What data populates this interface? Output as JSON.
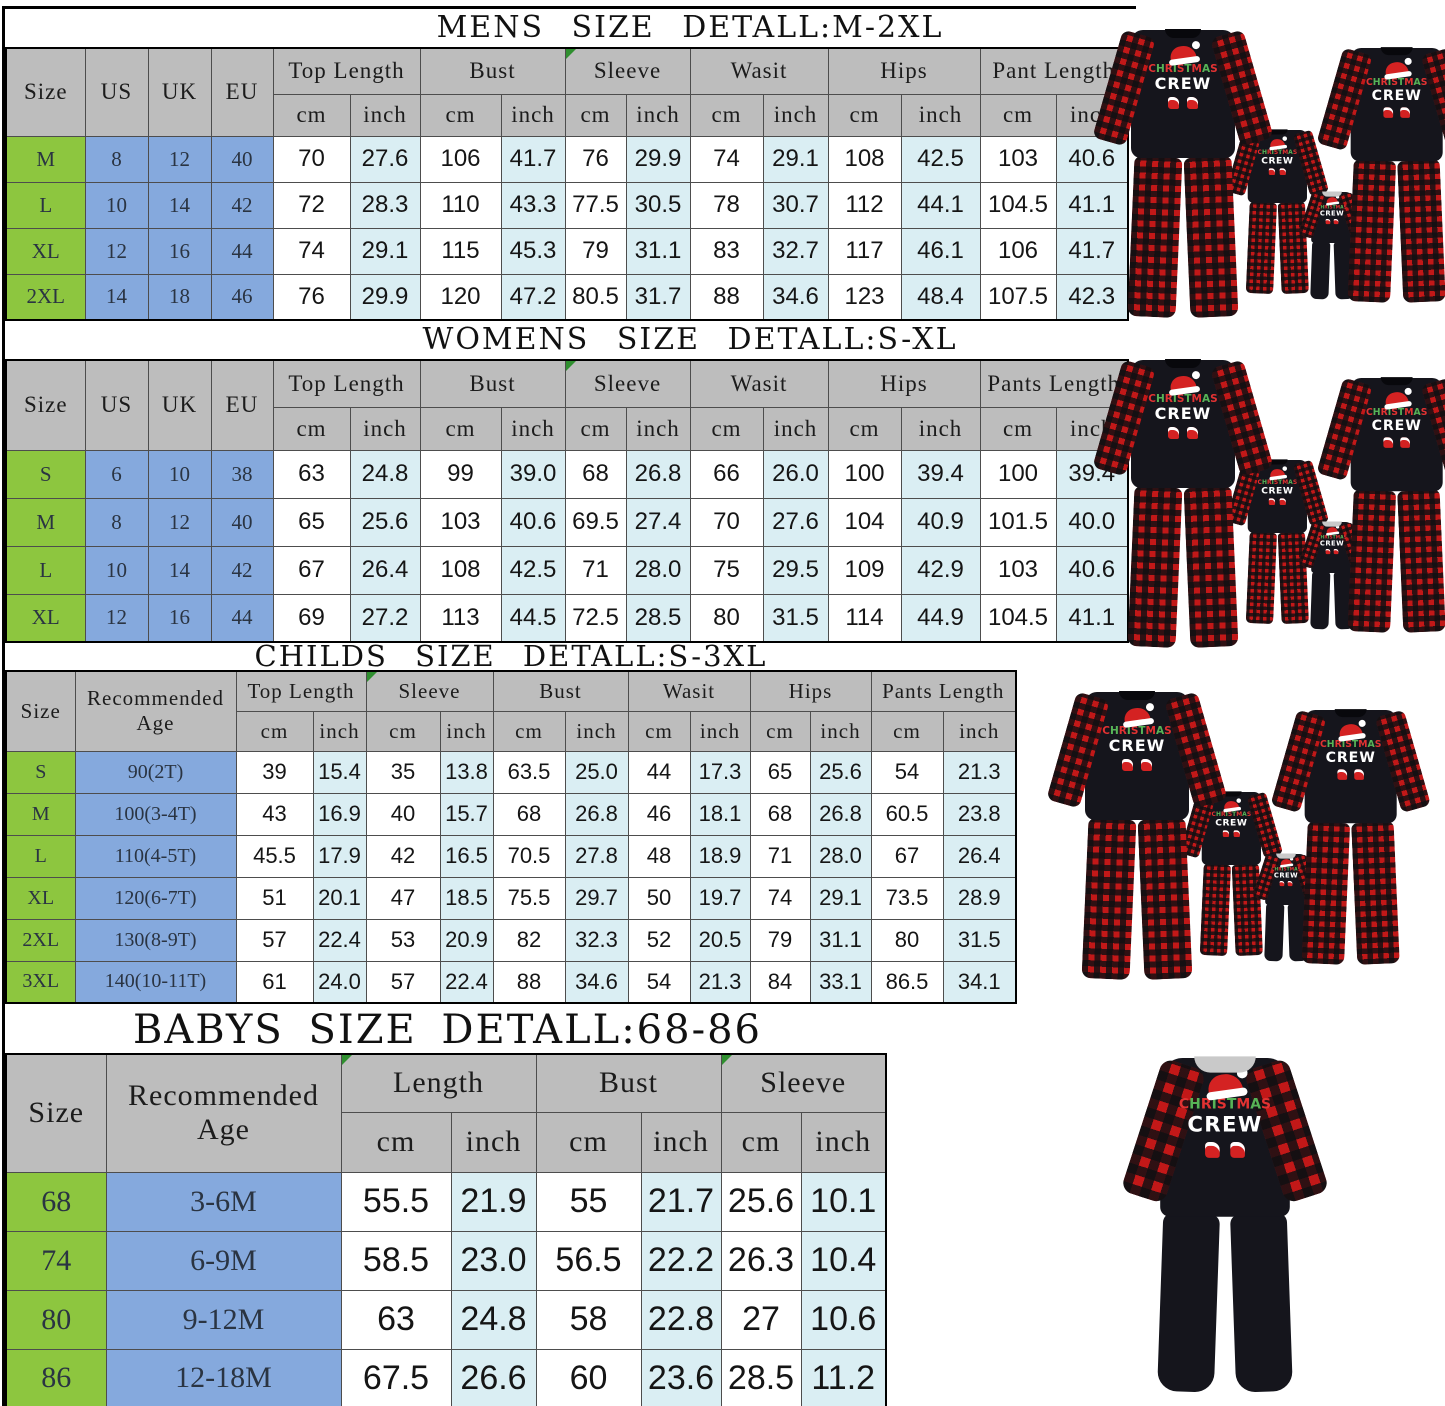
{
  "palette": {
    "header_gray": "#bdbdbd",
    "size_green": "#8dc63f",
    "label_blue": "#85a9dd",
    "inch_blue": "#daeef3",
    "plaid_red": "#c21818"
  },
  "tables": [
    {
      "title": "MENS SIZE DETALL:M-2XL",
      "label_headers": [
        "Size",
        "US",
        "UK",
        "EU"
      ],
      "groups": [
        {
          "label": "Top Length"
        },
        {
          "label": "Bust"
        },
        {
          "label": "Sleeve",
          "flag": true
        },
        {
          "label": "Wasit"
        },
        {
          "label": "Hips"
        },
        {
          "label": "Pant Length"
        }
      ],
      "units": [
        "cm",
        "inch"
      ],
      "rows": [
        {
          "labels": [
            "M",
            "8",
            "12",
            "40"
          ],
          "values": [
            "70",
            "27.6",
            "106",
            "41.7",
            "76",
            "29.9",
            "74",
            "29.1",
            "108",
            "42.5",
            "103",
            "40.6"
          ]
        },
        {
          "labels": [
            "L",
            "10",
            "14",
            "42"
          ],
          "values": [
            "72",
            "28.3",
            "110",
            "43.3",
            "77.5",
            "30.5",
            "78",
            "30.7",
            "112",
            "44.1",
            "104.5",
            "41.1"
          ]
        },
        {
          "labels": [
            "XL",
            "12",
            "16",
            "44"
          ],
          "values": [
            "74",
            "29.1",
            "115",
            "45.3",
            "79",
            "31.1",
            "83",
            "32.7",
            "117",
            "46.1",
            "106",
            "41.7"
          ]
        },
        {
          "labels": [
            "2XL",
            "14",
            "18",
            "46"
          ],
          "values": [
            "76",
            "29.9",
            "120",
            "47.2",
            "80.5",
            "31.7",
            "88",
            "34.6",
            "123",
            "48.4",
            "107.5",
            "42.3"
          ]
        }
      ]
    },
    {
      "title": "WOMENS SIZE DETALL:S-XL",
      "label_headers": [
        "Size",
        "US",
        "UK",
        "EU"
      ],
      "groups": [
        {
          "label": "Top Length"
        },
        {
          "label": "Bust"
        },
        {
          "label": "Sleeve",
          "flag": true
        },
        {
          "label": "Wasit"
        },
        {
          "label": "Hips"
        },
        {
          "label": "Pants Length"
        }
      ],
      "units": [
        "cm",
        "inch"
      ],
      "rows": [
        {
          "labels": [
            "S",
            "6",
            "10",
            "38"
          ],
          "values": [
            "63",
            "24.8",
            "99",
            "39.0",
            "68",
            "26.8",
            "66",
            "26.0",
            "100",
            "39.4",
            "100",
            "39.4"
          ]
        },
        {
          "labels": [
            "M",
            "8",
            "12",
            "40"
          ],
          "values": [
            "65",
            "25.6",
            "103",
            "40.6",
            "69.5",
            "27.4",
            "70",
            "27.6",
            "104",
            "40.9",
            "101.5",
            "40.0"
          ]
        },
        {
          "labels": [
            "L",
            "10",
            "14",
            "42"
          ],
          "values": [
            "67",
            "26.4",
            "108",
            "42.5",
            "71",
            "28.0",
            "75",
            "29.5",
            "109",
            "42.9",
            "103",
            "40.6"
          ]
        },
        {
          "labels": [
            "XL",
            "12",
            "16",
            "44"
          ],
          "values": [
            "69",
            "27.2",
            "113",
            "44.5",
            "72.5",
            "28.5",
            "80",
            "31.5",
            "114",
            "44.9",
            "104.5",
            "41.1"
          ]
        }
      ]
    },
    {
      "title": "CHILDS SIZE DETALL:S-3XL",
      "label_headers": [
        "Size",
        "Recommended Age"
      ],
      "groups": [
        {
          "label": "Top Length"
        },
        {
          "label": "Sleeve",
          "flag": true
        },
        {
          "label": "Bust"
        },
        {
          "label": "Wasit"
        },
        {
          "label": "Hips"
        },
        {
          "label": "Pants Length"
        }
      ],
      "units": [
        "cm",
        "inch"
      ],
      "rows": [
        {
          "labels": [
            "S",
            "90(2T)"
          ],
          "values": [
            "39",
            "15.4",
            "35",
            "13.8",
            "63.5",
            "25.0",
            "44",
            "17.3",
            "65",
            "25.6",
            "54",
            "21.3"
          ]
        },
        {
          "labels": [
            "M",
            "100(3-4T)"
          ],
          "values": [
            "43",
            "16.9",
            "40",
            "15.7",
            "68",
            "26.8",
            "46",
            "18.1",
            "68",
            "26.8",
            "60.5",
            "23.8"
          ]
        },
        {
          "labels": [
            "L",
            "110(4-5T)"
          ],
          "values": [
            "45.5",
            "17.9",
            "42",
            "16.5",
            "70.5",
            "27.8",
            "48",
            "18.9",
            "71",
            "28.0",
            "67",
            "26.4"
          ]
        },
        {
          "labels": [
            "XL",
            "120(6-7T)"
          ],
          "values": [
            "51",
            "20.1",
            "47",
            "18.5",
            "75.5",
            "29.7",
            "50",
            "19.7",
            "74",
            "29.1",
            "73.5",
            "28.9"
          ]
        },
        {
          "labels": [
            "2XL",
            "130(8-9T)"
          ],
          "values": [
            "57",
            "22.4",
            "53",
            "20.9",
            "82",
            "32.3",
            "52",
            "20.5",
            "79",
            "31.1",
            "80",
            "31.5"
          ]
        },
        {
          "labels": [
            "3XL",
            "140(10-11T)"
          ],
          "values": [
            "61",
            "24.0",
            "57",
            "22.4",
            "88",
            "34.6",
            "54",
            "21.3",
            "84",
            "33.1",
            "86.5",
            "34.1"
          ]
        }
      ]
    },
    {
      "title": "BABYS SIZE DETALL:68-86",
      "label_headers": [
        "Size",
        "Recommended Age"
      ],
      "groups": [
        {
          "label": "Length",
          "flag": true
        },
        {
          "label": "Bust"
        },
        {
          "label": "Sleeve",
          "flag": true
        }
      ],
      "units": [
        "cm",
        "inch"
      ],
      "rows": [
        {
          "labels": [
            "68",
            "3-6M"
          ],
          "values": [
            "55.5",
            "21.9",
            "55",
            "21.7",
            "25.6",
            "10.1"
          ]
        },
        {
          "labels": [
            "74",
            "6-9M"
          ],
          "values": [
            "58.5",
            "23.0",
            "56.5",
            "22.2",
            "26.3",
            "10.4"
          ]
        },
        {
          "labels": [
            "80",
            "9-12M"
          ],
          "values": [
            "63",
            "24.8",
            "58",
            "22.8",
            "27",
            "10.6"
          ]
        },
        {
          "labels": [
            "86",
            "12-18M"
          ],
          "values": [
            "67.5",
            "26.6",
            "60",
            "23.6",
            "28.5",
            "11.2"
          ]
        }
      ]
    }
  ],
  "product_images": {
    "print": {
      "line1": "CHRISTMAS",
      "line2": "CREW"
    }
  }
}
